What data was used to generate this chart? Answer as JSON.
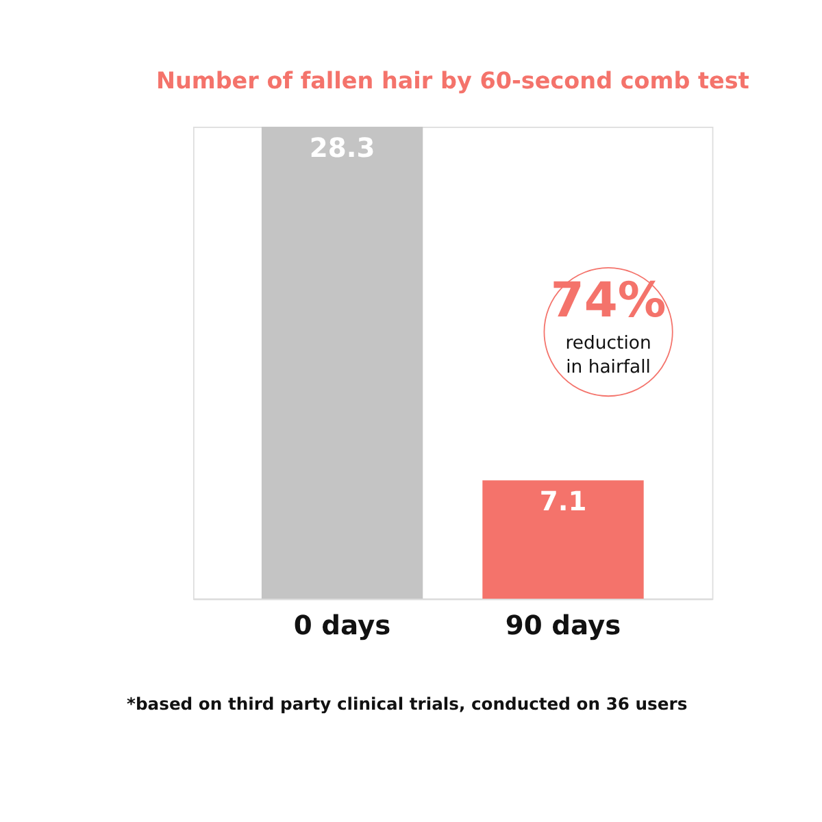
{
  "chart_data": {
    "type": "bar",
    "title": "Number of fallen hair by 60-second comb test",
    "categories": [
      "0 days",
      "90 days"
    ],
    "values": [
      28.3,
      7.1
    ],
    "colors": [
      "#c4c4c4",
      "#f4736b"
    ],
    "data_labels": true,
    "annotations": [
      "74%",
      "reduction in hairfall",
      "*based on third party clinical trials, conducted on 36 users"
    ]
  }
}
